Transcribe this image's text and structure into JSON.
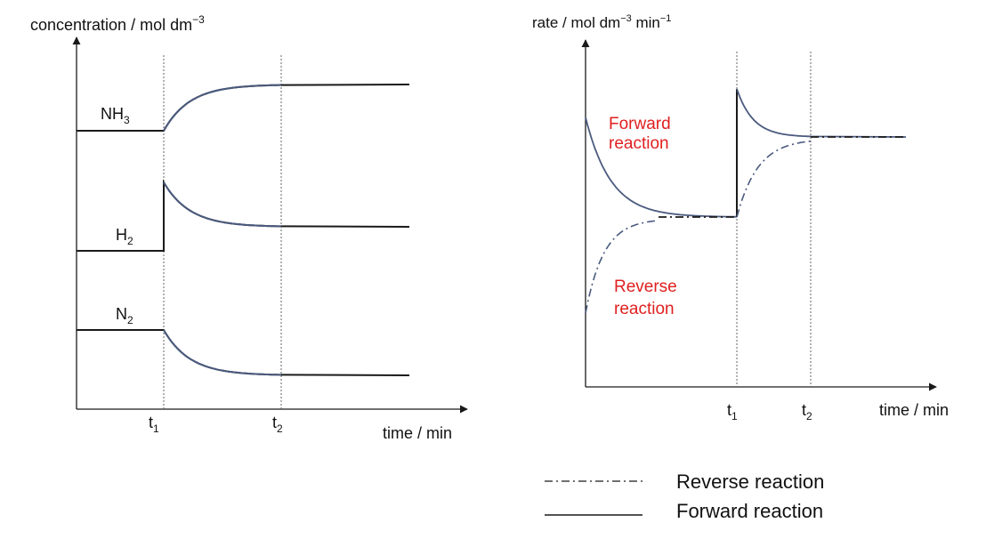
{
  "colors": {
    "curve": "#4a5a7e",
    "flat": "#1a1a1a",
    "axis": "#1a1a1a",
    "guide": "#666666",
    "annotation_red": "#e02020"
  },
  "chart_data": [
    {
      "type": "line",
      "ylabel": {
        "text": "concentration / mol dm",
        "exp": "−3"
      },
      "xlabel": "time / min",
      "x_ticks": [
        {
          "base": "t",
          "sub": "1"
        },
        {
          "base": "t",
          "sub": "2"
        }
      ],
      "series": [
        {
          "label_base": "NH",
          "label_sub": "3",
          "before": 3.0,
          "jump": 3.0,
          "after": 3.5,
          "change": "rises smoothly to new equilibrium"
        },
        {
          "label_base": "H",
          "label_sub": "2",
          "before": 1.7,
          "jump": 2.4,
          "after": 2.0,
          "change": "sudden increase then falls to new equilibrium"
        },
        {
          "label_base": "N",
          "label_sub": "2",
          "before": 0.9,
          "jump": 0.9,
          "after": 0.4,
          "change": "falls smoothly to new equilibrium"
        }
      ]
    },
    {
      "type": "line",
      "ylabel": {
        "text": "rate / mol dm",
        "exp1": "−3",
        "mid": " min",
        "exp2": "−1"
      },
      "xlabel": "time / min",
      "x_ticks": [
        {
          "base": "t",
          "sub": "1"
        },
        {
          "base": "t",
          "sub": "2"
        }
      ],
      "annotations": [
        {
          "lines": [
            "Forward",
            "reaction"
          ]
        },
        {
          "lines": [
            "Reverse",
            "reaction"
          ]
        }
      ],
      "series": [
        {
          "name": "Forward reaction",
          "style": "solid",
          "start": 3.1,
          "equilibrium_1": 2.0,
          "jump_at_t1": 3.5,
          "equilibrium_2": 2.8
        },
        {
          "name": "Reverse reaction",
          "style": "dash-dot",
          "start": 0.8,
          "equilibrium_1": 2.0,
          "equilibrium_2": 2.8
        }
      ]
    }
  ],
  "legend": [
    {
      "label": "Reverse reaction",
      "style": "dash-dot"
    },
    {
      "label": "Forward reaction",
      "style": "solid"
    }
  ]
}
